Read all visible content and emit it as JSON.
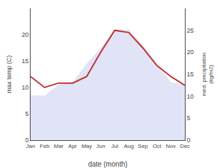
{
  "chart_data": {
    "type": "line",
    "xlabel": "date (month)",
    "ylabel": "max temp (C)",
    "y2label": "med. precipitation\n(kg/m2)",
    "categories": [
      "Jan",
      "Feb",
      "Mar",
      "Apr",
      "May",
      "Jun",
      "Jul",
      "Aug",
      "Sep",
      "Oct",
      "Nov",
      "Dec"
    ],
    "series": [
      {
        "type": "area",
        "color": "#c8ccee",
        "values": [
          8.5,
          8.5,
          10.5,
          11.0,
          14.5,
          17.5,
          21.0,
          21.0,
          18.0,
          14.5,
          11.0,
          10.5
        ]
      },
      {
        "type": "line",
        "color": "#c03030",
        "axis": "y2",
        "values": [
          14.5,
          12.0,
          13.0,
          13.0,
          14.5,
          20.0,
          25.0,
          24.5,
          21.0,
          17.0,
          14.5,
          12.5
        ]
      }
    ],
    "ylim": [
      0,
      25
    ],
    "yticks": [
      0,
      5,
      10,
      15,
      20
    ],
    "y2lim": [
      0,
      30
    ],
    "y2ticks": [
      0,
      5,
      10,
      15,
      20,
      25
    ],
    "grid": false
  }
}
